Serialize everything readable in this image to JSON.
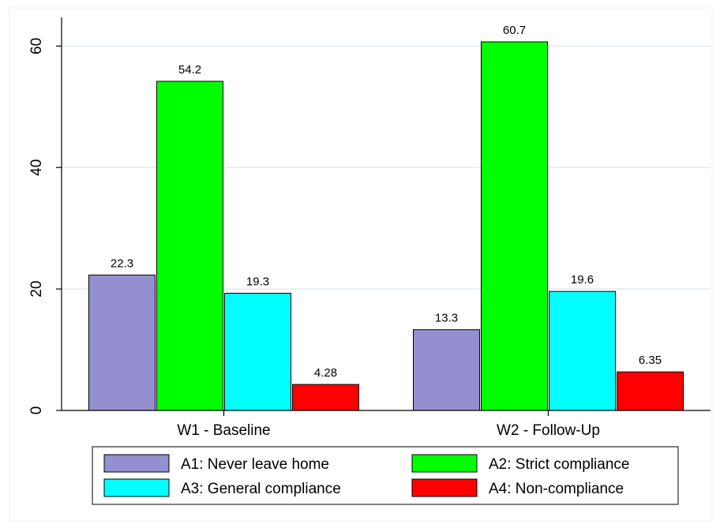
{
  "chart_data": {
    "type": "bar",
    "categories": [
      "W1 - Baseline",
      "W2 - Follow-Up"
    ],
    "series": [
      {
        "name": "A1: Never leave home",
        "values": [
          22.3,
          13.3
        ],
        "color": "#9490d0"
      },
      {
        "name": "A2: Strict compliance",
        "values": [
          54.2,
          60.7
        ],
        "color": "#00ff00"
      },
      {
        "name": "A3: General compliance",
        "values": [
          19.3,
          19.6
        ],
        "color": "#00ffff"
      },
      {
        "name": "A4: Non-compliance",
        "values": [
          4.28,
          6.35
        ],
        "color": "#ff0000"
      }
    ],
    "value_labels": [
      [
        "22.3",
        "13.3"
      ],
      [
        "54.2",
        "60.7"
      ],
      [
        "19.3",
        "19.6"
      ],
      [
        "4.28",
        "6.35"
      ]
    ],
    "yticks": [
      "0",
      "20",
      "40",
      "60"
    ],
    "ylim": [
      0,
      60.7
    ],
    "grid": true,
    "legend_position": "bottom",
    "title": "",
    "xlabel": "",
    "ylabel": ""
  }
}
